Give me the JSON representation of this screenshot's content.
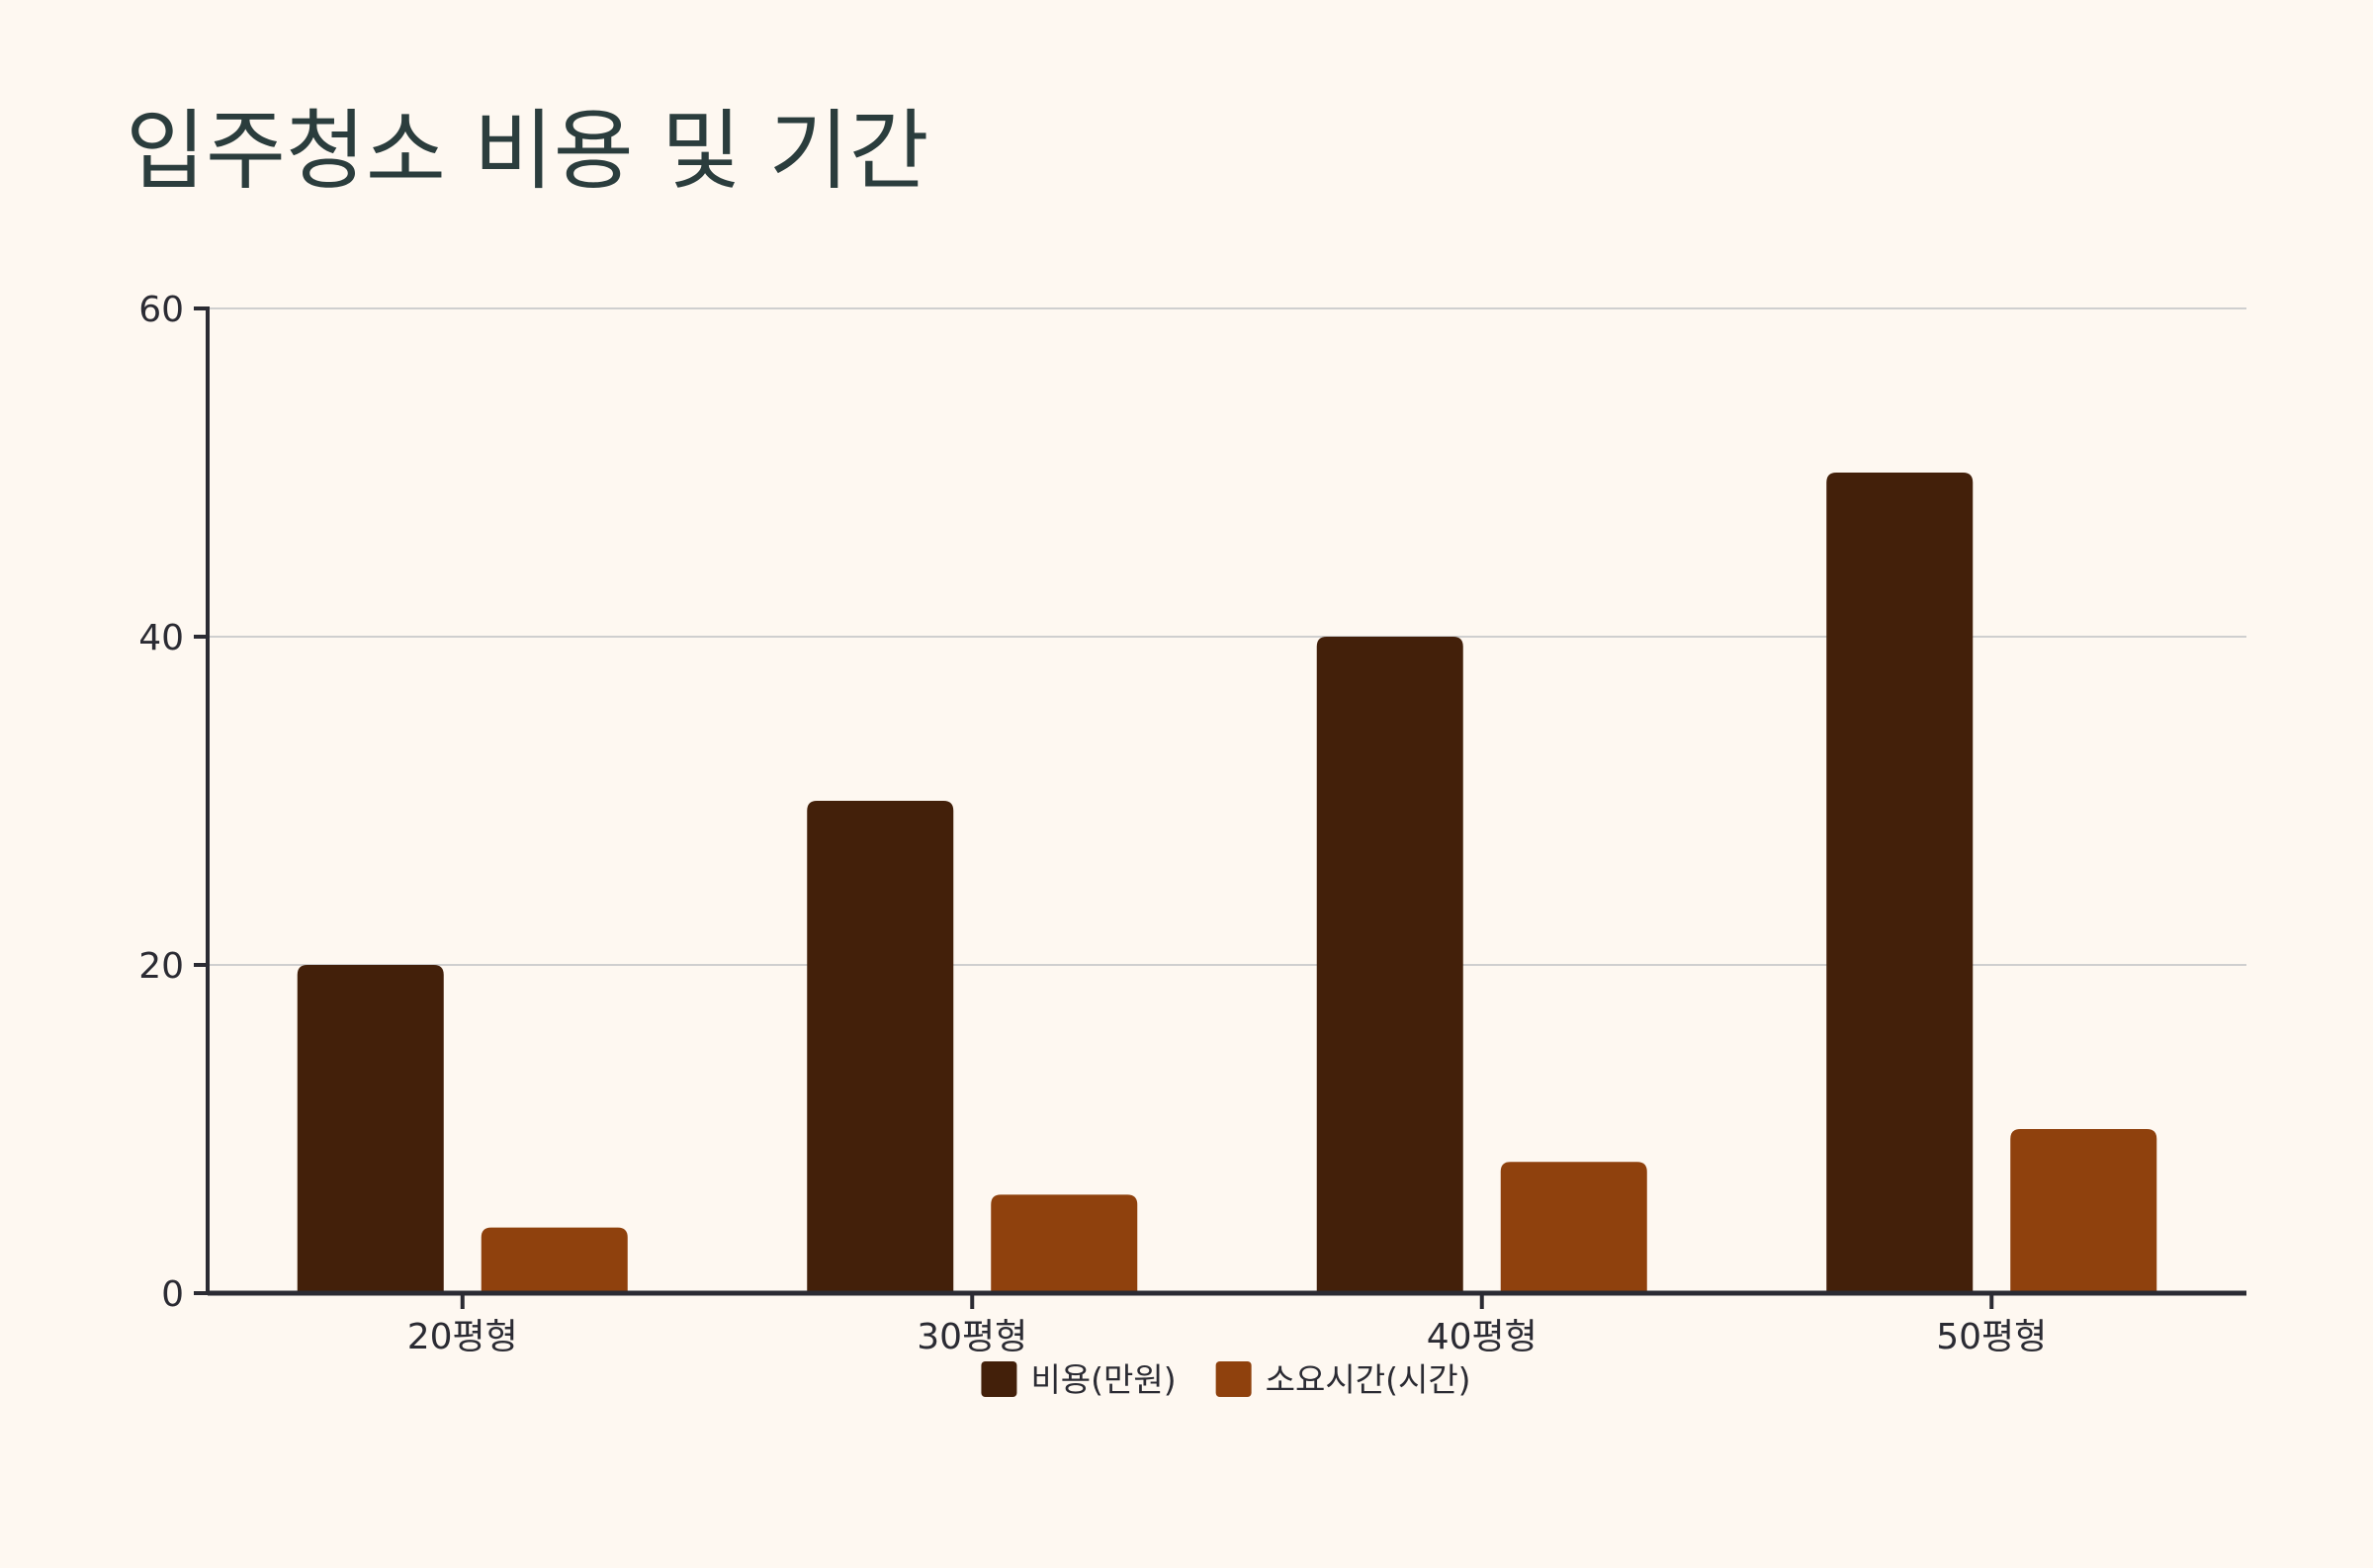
{
  "chart_data": {
    "type": "bar",
    "title": "입주청소 비용 및 기간",
    "xlabel": "",
    "ylabel": "",
    "categories": [
      "20평형",
      "30평형",
      "40평형",
      "50평형"
    ],
    "series": [
      {
        "name": "비용(만원)",
        "values": [
          20,
          30,
          40,
          50
        ],
        "color": "#43200a"
      },
      {
        "name": "소요시간(시간)",
        "values": [
          4,
          6,
          8,
          10
        ],
        "color": "#8f410d"
      }
    ],
    "ylim": [
      0,
      60
    ],
    "yticks": [
      0,
      20,
      40,
      60
    ],
    "ytick_labels": [
      "0",
      "20",
      "40",
      "60"
    ],
    "grid": true,
    "legend_position": "bottom-center",
    "colors": {
      "background": "#fef8f1",
      "title": "#2b3d3d",
      "axis": "#2b2b33",
      "grid": "#cfcfcf"
    }
  }
}
